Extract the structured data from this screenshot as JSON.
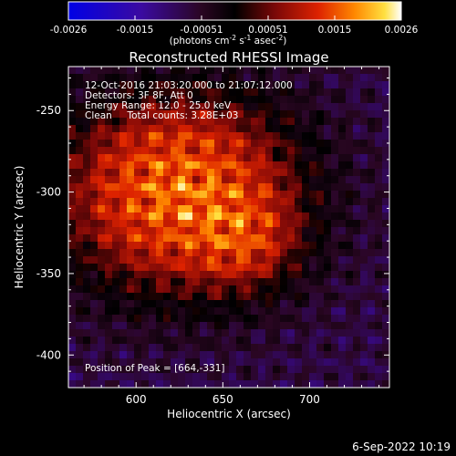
{
  "colorbar": {
    "tick_labels": [
      "-0.0026",
      "-0.0015",
      "-0.00051",
      "0.00051",
      "0.0015",
      "0.0026"
    ],
    "units_prefix": "(photons cm",
    "units_exp1": "-2",
    "units_mid1": " s",
    "units_exp2": "-1",
    "units_mid2": " asec",
    "units_exp3": "-2",
    "units_suffix": ")",
    "min": -0.0026,
    "max": 0.0026
  },
  "image": {
    "title": "Reconstructed RHESSI Image",
    "info_lines": [
      "12-Oct-2016 21:03:20.000 to 21:07:12.000",
      "Detectors: 3F 8F, Att 0",
      "Energy Range: 12.0 - 25.0 keV",
      "Clean     Total counts: 3.28E+03"
    ],
    "peak_label": "Position of Peak = [664,-331]"
  },
  "chart_data": {
    "type": "heatmap",
    "title": "Reconstructed RHESSI Image",
    "xlabel": "Heliocentric X (arcsec)",
    "ylabel": "Heliocentric Y (arcsec)",
    "xlim": [
      561,
      746
    ],
    "ylim": [
      -420,
      -223
    ],
    "x_ticks": [
      600,
      650,
      700
    ],
    "y_ticks": [
      -250,
      -300,
      -350,
      -400
    ],
    "peak": [
      664,
      -331
    ],
    "source_center": [
      625,
      -300
    ],
    "colormap": "RHESSI red-temperature (blue-purple negative, black-red-yellow-white positive)"
  },
  "timestamp": "6-Sep-2022 10:19",
  "colors": {
    "background": "#000000",
    "axes": "#ffffff",
    "text": "#ffffff"
  }
}
